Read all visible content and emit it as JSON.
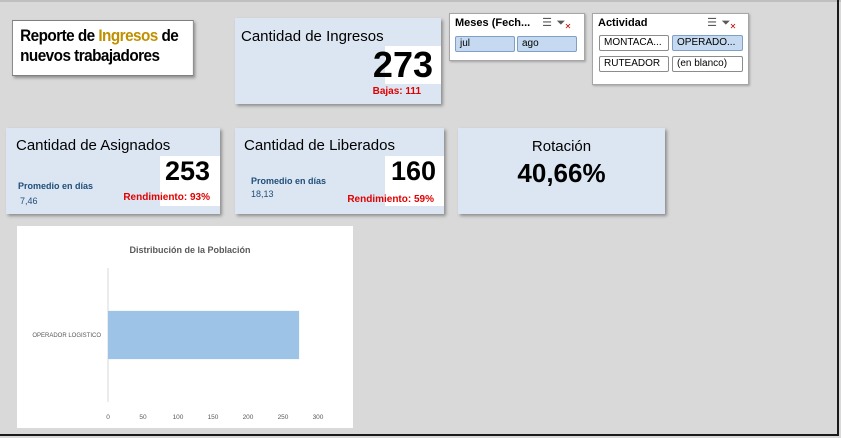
{
  "report_title": {
    "line1_pre": "Reporte de ",
    "line1_accent": "Ingresos",
    "line1_post": " de",
    "line2": "nuevos trabajadores",
    "accent_color": "#bf9000"
  },
  "cards": {
    "ingresos": {
      "title": "Cantidad de Ingresos",
      "value": "273",
      "note": "Bajas: 111"
    },
    "asignados": {
      "title": "Cantidad de Asignados",
      "value": "253",
      "avg_label": "Promedio en días",
      "avg_value": "7,46",
      "note": "Rendimiento: 93%"
    },
    "liberados": {
      "title": "Cantidad de Liberados",
      "value": "160",
      "avg_label": "Promedio en días",
      "avg_value": "18,13",
      "note": "Rendimiento: 59%"
    },
    "rotacion": {
      "title": "Rotación",
      "value": "40,66%"
    }
  },
  "slicers": {
    "meses": {
      "header": "Meses (Fech...",
      "icons": [
        "multi-select-icon",
        "clear-filter-icon"
      ],
      "items": [
        {
          "label": "jul",
          "selected": true
        },
        {
          "label": "ago",
          "selected": true
        }
      ]
    },
    "actividad": {
      "header": "Actividad",
      "icons": [
        "multi-select-icon",
        "clear-filter-icon"
      ],
      "items": [
        {
          "label": "MONTACA...",
          "selected": false
        },
        {
          "label": "OPERADO...",
          "selected": true
        },
        {
          "label": "RUTEADOR",
          "selected": false
        },
        {
          "label": "(en blanco)",
          "selected": false
        }
      ]
    }
  },
  "colors": {
    "card_bg": "#dce6f2",
    "note_red": "#e00000",
    "avg_blue": "#1f4e79",
    "bar_blue": "#9dc3e6",
    "slicer_selected": "#c5d9f1"
  },
  "chart_data": {
    "type": "bar",
    "orientation": "horizontal",
    "title": "Distribución de la Población",
    "categories": [
      "OPERADOR LOGISTICO"
    ],
    "values": [
      273
    ],
    "xlim": [
      0,
      300
    ],
    "xticks": [
      "0",
      "50",
      "100",
      "150",
      "200",
      "250",
      "300"
    ],
    "xlabel": "",
    "ylabel": "",
    "grid": false,
    "legend": "none"
  }
}
